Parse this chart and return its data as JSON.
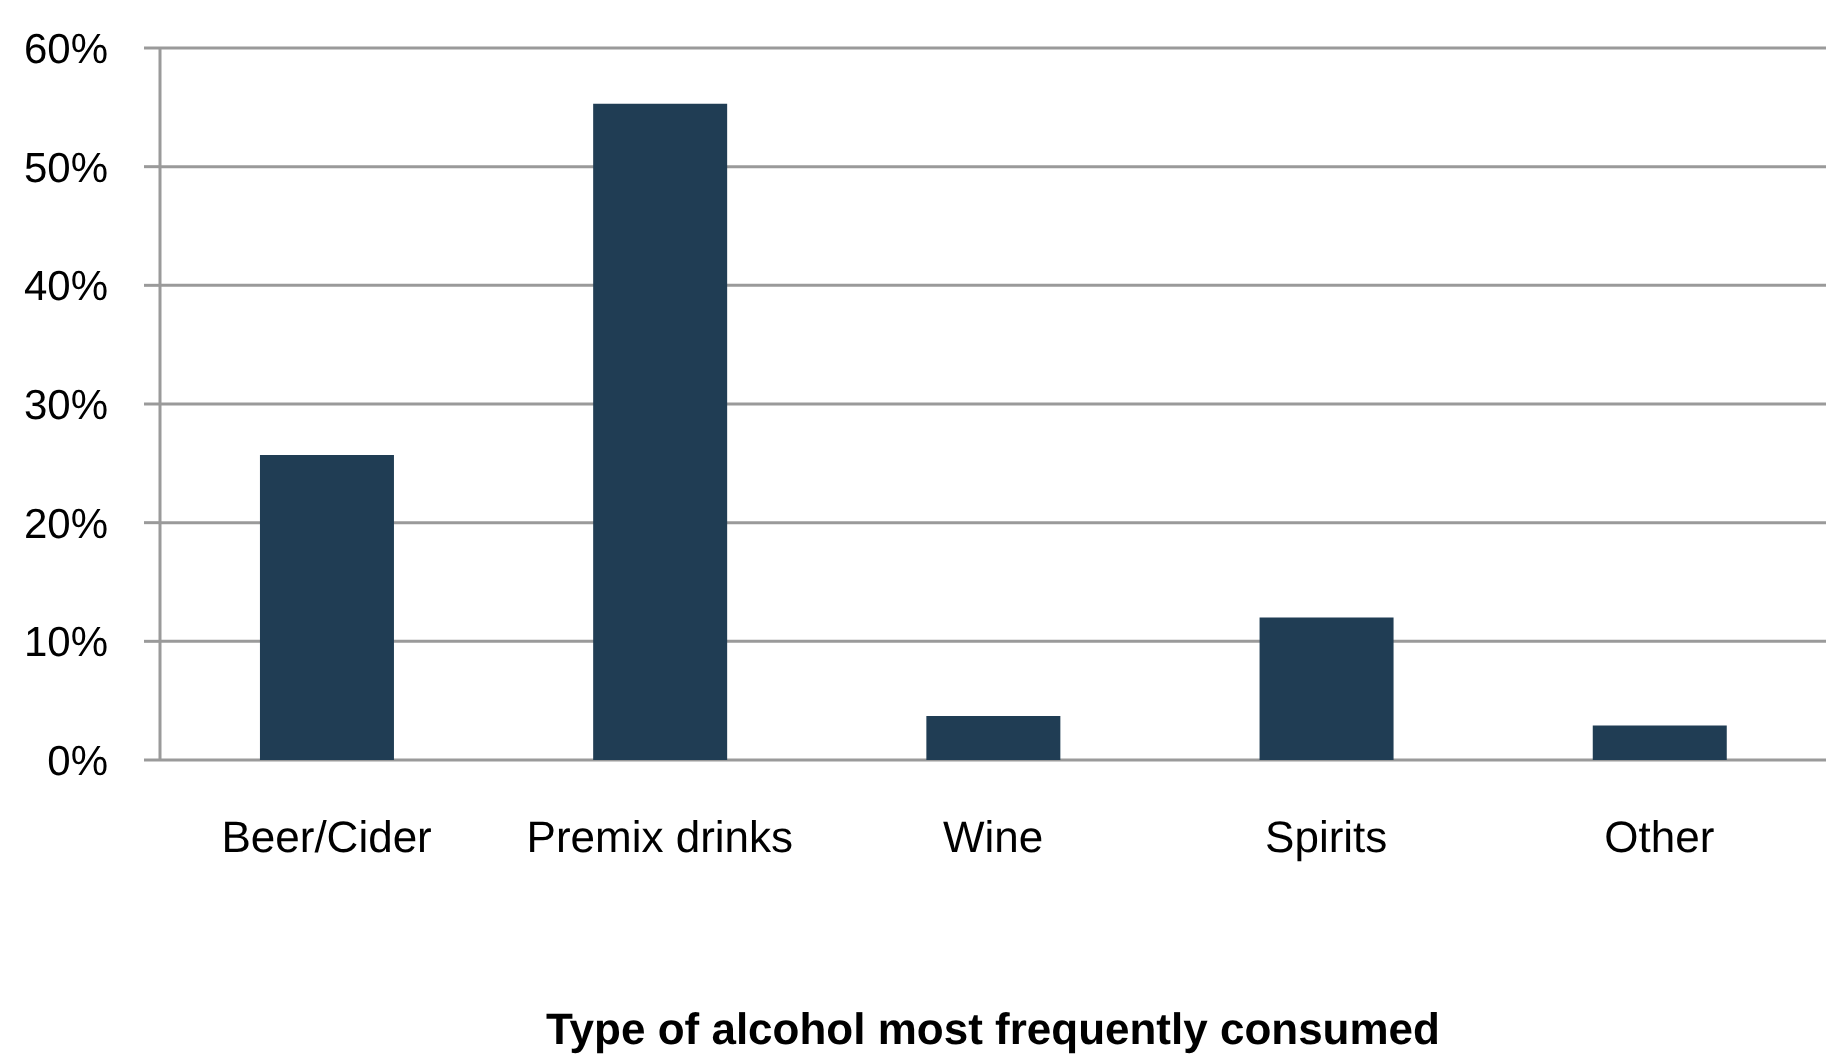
{
  "chart_data": {
    "type": "bar",
    "xlabel": "Type of alcohol most frequently consumed",
    "categories": [
      "Beer/Cider",
      "Premix drinks",
      "Wine",
      "Spirits",
      "Other"
    ],
    "values": [
      25.7,
      55.3,
      3.7,
      12.0,
      2.9
    ],
    "color": "#203d54",
    "ylim": [
      0,
      60
    ],
    "yticks": [
      {
        "value": 0,
        "label": "0%"
      },
      {
        "value": 10,
        "label": "10%"
      },
      {
        "value": 20,
        "label": "20%"
      },
      {
        "value": 30,
        "label": "30%"
      },
      {
        "value": 40,
        "label": "40%"
      },
      {
        "value": 50,
        "label": "50%"
      },
      {
        "value": 60,
        "label": "60%"
      }
    ],
    "grid": "y"
  }
}
